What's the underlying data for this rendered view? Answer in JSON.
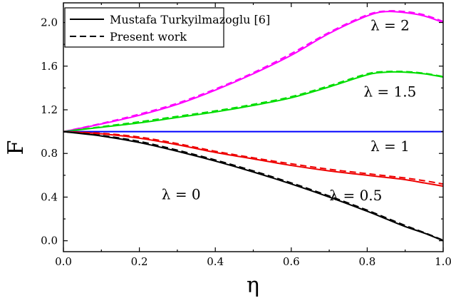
{
  "chart_data": {
    "type": "line",
    "title": "",
    "xlabel": "η",
    "ylabel": "F",
    "xlim": [
      0,
      1
    ],
    "ylim": [
      -0.1,
      2.18
    ],
    "x_ticks": [
      0.0,
      0.2,
      0.4,
      0.6,
      0.8,
      1.0
    ],
    "x_tick_labels": [
      "0.0",
      "0.2",
      "0.4",
      "0.6",
      "0.8",
      "1.0"
    ],
    "y_ticks": [
      0.0,
      0.4,
      0.8,
      1.2,
      1.6,
      2.0
    ],
    "y_tick_labels": [
      "0.0",
      "0.4",
      "0.8",
      "1.2",
      "1.6",
      "2.0"
    ],
    "grid": false,
    "legend": {
      "placement": "top-left",
      "entries": [
        {
          "label": "Mustafa Turkyilmazoglu [6]",
          "style": "solid"
        },
        {
          "label": "Present work",
          "style": "dashed"
        }
      ]
    },
    "x": [
      0.0,
      0.1,
      0.2,
      0.3,
      0.4,
      0.5,
      0.6,
      0.7,
      0.8,
      0.85,
      0.9,
      0.95,
      1.0
    ],
    "series": [
      {
        "color": "#ff00ff",
        "style": "solid",
        "values": [
          1.0,
          1.07,
          1.15,
          1.25,
          1.38,
          1.53,
          1.7,
          1.9,
          2.06,
          2.1,
          2.09,
          2.06,
          2.0
        ]
      },
      {
        "color": "#ff00ff",
        "style": "dashed",
        "values": [
          1.0,
          1.075,
          1.16,
          1.26,
          1.39,
          1.54,
          1.715,
          1.91,
          2.07,
          2.105,
          2.1,
          2.07,
          2.01
        ]
      },
      {
        "color": "#00dd00",
        "style": "solid",
        "values": [
          1.0,
          1.04,
          1.08,
          1.13,
          1.18,
          1.24,
          1.31,
          1.41,
          1.52,
          1.545,
          1.545,
          1.53,
          1.5
        ]
      },
      {
        "color": "#00dd00",
        "style": "dashed",
        "values": [
          1.0,
          1.045,
          1.09,
          1.14,
          1.19,
          1.25,
          1.32,
          1.42,
          1.53,
          1.55,
          1.55,
          1.535,
          1.505
        ]
      },
      {
        "color": "#0000ff",
        "style": "solid",
        "values": [
          1.0,
          1.0,
          1.0,
          1.0,
          1.0,
          1.0,
          1.0,
          1.0,
          1.0,
          1.0,
          1.0,
          1.0,
          1.0
        ]
      },
      {
        "color": "#ee0000",
        "style": "solid",
        "values": [
          1.0,
          0.98,
          0.94,
          0.88,
          0.81,
          0.75,
          0.69,
          0.64,
          0.6,
          0.58,
          0.56,
          0.53,
          0.5
        ]
      },
      {
        "color": "#ee0000",
        "style": "dashed",
        "values": [
          1.0,
          0.985,
          0.95,
          0.89,
          0.82,
          0.76,
          0.705,
          0.655,
          0.615,
          0.595,
          0.575,
          0.55,
          0.52
        ]
      },
      {
        "color": "#000000",
        "style": "solid",
        "values": [
          1.0,
          0.96,
          0.9,
          0.82,
          0.73,
          0.63,
          0.52,
          0.4,
          0.27,
          0.2,
          0.13,
          0.07,
          0.0
        ]
      },
      {
        "color": "#000000",
        "style": "dashed",
        "values": [
          1.0,
          0.965,
          0.91,
          0.83,
          0.74,
          0.64,
          0.53,
          0.41,
          0.28,
          0.21,
          0.14,
          0.075,
          0.005
        ]
      }
    ],
    "annotations": [
      {
        "text": "λ = 2",
        "x": 0.86,
        "y": 1.93
      },
      {
        "text": "λ = 1.5",
        "x": 0.86,
        "y": 1.32
      },
      {
        "text": "λ = 1",
        "x": 0.86,
        "y": 0.82
      },
      {
        "text": "λ = 0.5",
        "x": 0.77,
        "y": 0.37
      },
      {
        "text": "λ = 0",
        "x": 0.31,
        "y": 0.38
      }
    ]
  }
}
